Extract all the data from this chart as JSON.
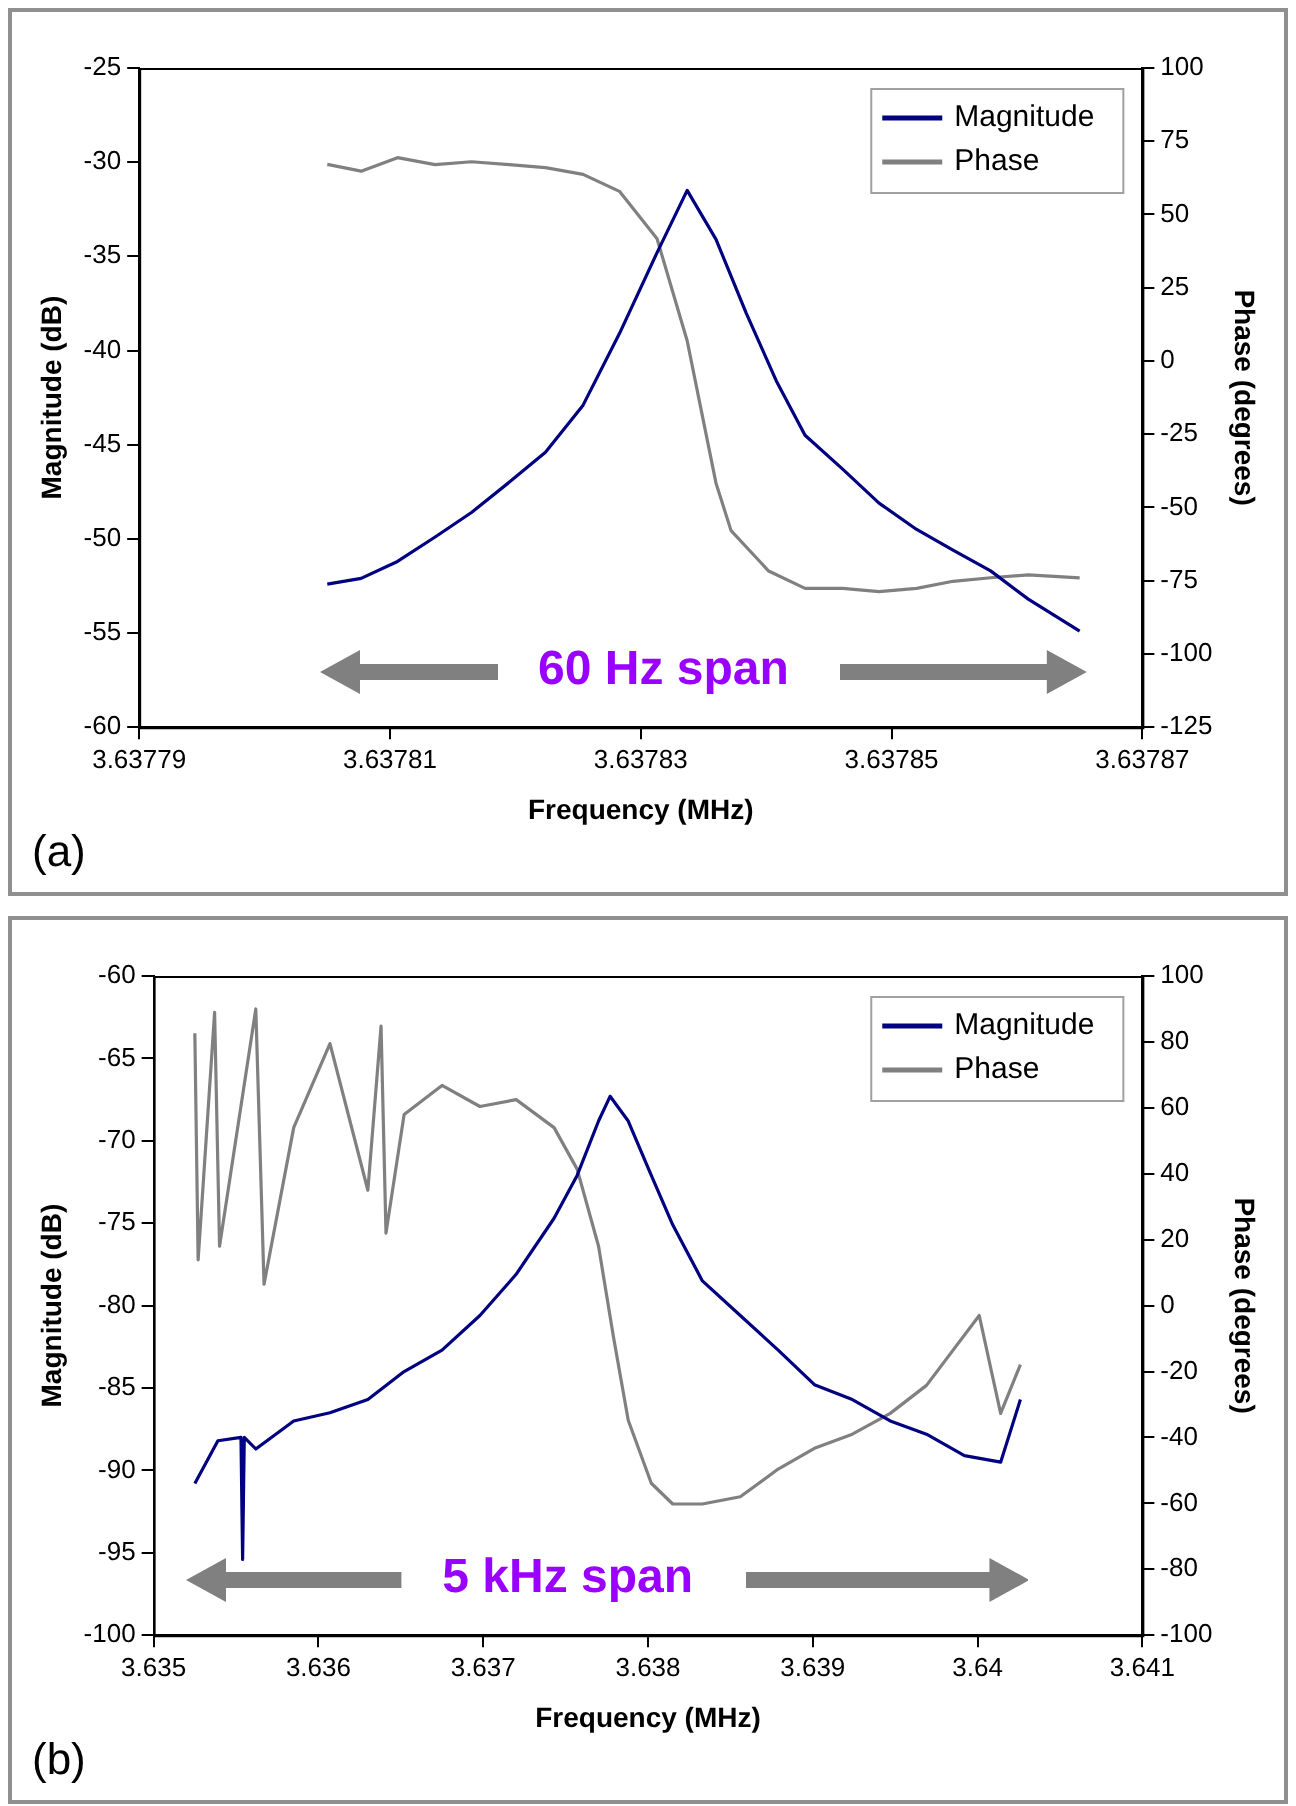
{
  "chart_data": [
    {
      "type": "line",
      "xlabel": "Frequency (MHz)",
      "ylabel": "Magnitude (dB)",
      "y2label": "Phase (degrees)",
      "legend": "top right",
      "grid": false,
      "xlim": [
        3.63779,
        3.63787
      ],
      "xticks": [
        3.63779,
        3.63781,
        3.63783,
        3.63785,
        3.63787
      ],
      "ylim": [
        -60,
        -25
      ],
      "yticks": [
        -60,
        -55,
        -50,
        -45,
        -40,
        -35,
        -30,
        -25
      ],
      "y2lim": [
        -125,
        100
      ],
      "y2ticks": [
        -125,
        -100,
        -75,
        -50,
        -25,
        0,
        25,
        50,
        75,
        100
      ],
      "annotations": [
        "60 Hz span",
        "(a)"
      ],
      "series": [
        {
          "name": "Magnitude",
          "color": "#000080",
          "x": [
            3.637805,
            3.6378077,
            3.6378106,
            3.6378136,
            3.6378165,
            3.6378195,
            3.6378224,
            3.6378254,
            3.6378283,
            3.6378313,
            3.6378337,
            3.637836,
            3.6378384,
            3.6378408,
            3.6378431,
            3.6378461,
            3.637849,
            3.637852,
            3.6378549,
            3.6378579,
            3.6378609,
            3.637865
          ],
          "values": [
            -52.4,
            -52.1,
            -51.2,
            -49.9,
            -48.6,
            -47.0,
            -45.4,
            -42.9,
            -39.1,
            -34.8,
            -31.5,
            -34.1,
            -38.0,
            -41.6,
            -44.5,
            -46.3,
            -48.1,
            -49.5,
            -50.6,
            -51.7,
            -53.2,
            -54.9
          ]
        },
        {
          "name": "Phase",
          "color": "#808080",
          "axis": "y2",
          "x": [
            3.637805,
            3.6378077,
            3.6378106,
            3.6378136,
            3.6378165,
            3.6378195,
            3.6378224,
            3.6378254,
            3.6378283,
            3.6378313,
            3.6378337,
            3.6378349,
            3.637836,
            3.6378372,
            3.6378402,
            3.6378431,
            3.6378461,
            3.637849,
            3.637852,
            3.6378549,
            3.6378579,
            3.6378609,
            3.637865
          ],
          "values": [
            67.1,
            64.8,
            69.4,
            67,
            68,
            67,
            66,
            63.7,
            57.9,
            41.7,
            6.9,
            -18.5,
            -41.7,
            -57.9,
            -71.7,
            -77.6,
            -77.6,
            -78.7,
            -77.6,
            -75.2,
            -74,
            -73,
            -74
          ]
        }
      ]
    },
    {
      "type": "line",
      "xlabel": "Frequency (MHz)",
      "ylabel": "Magnitude (dB)",
      "y2label": "Phase (degrees)",
      "legend": "top right",
      "grid": false,
      "xlim": [
        3.635,
        3.641
      ],
      "xticks": [
        3.635,
        3.636,
        3.637,
        3.638,
        3.639,
        3.64,
        3.641
      ],
      "ylim": [
        -100,
        -60
      ],
      "yticks": [
        -100,
        -95,
        -90,
        -85,
        -80,
        -75,
        -70,
        -65,
        -60
      ],
      "y2lim": [
        -100,
        100
      ],
      "y2ticks": [
        -100,
        -80,
        -60,
        -40,
        -20,
        0,
        20,
        40,
        60,
        80,
        100
      ],
      "annotations": [
        "5 kHz span",
        "(b)"
      ],
      "series": [
        {
          "name": "Magnitude",
          "color": "#000080",
          "x": [
            3.63525,
            3.63539,
            3.63553,
            3.63554,
            3.63555,
            3.63562,
            3.63585,
            3.63607,
            3.6363,
            3.63652,
            3.63675,
            3.63698,
            3.6372,
            3.63743,
            3.63757,
            3.6377,
            3.63777,
            3.63788,
            3.63802,
            3.63815,
            3.63833,
            3.63856,
            3.63879,
            3.63901,
            3.63924,
            3.63947,
            3.63969,
            3.63992,
            3.64014,
            3.64026
          ],
          "values": [
            -90.8,
            -88.2,
            -88,
            -95.4,
            -88,
            -88.7,
            -87.0,
            -86.5,
            -85.7,
            -84.0,
            -82.7,
            -80.6,
            -78.1,
            -74.7,
            -72.1,
            -68.8,
            -67.3,
            -68.8,
            -72.1,
            -75.1,
            -78.5,
            -80.6,
            -82.7,
            -84.8,
            -85.7,
            -87.0,
            -87.8,
            -89.1,
            -89.5,
            -85.7
          ]
        },
        {
          "name": "Phase",
          "color": "#808080",
          "axis": "y2",
          "x": [
            3.63525,
            3.63527,
            3.63537,
            3.6354,
            3.63562,
            3.63567,
            3.63585,
            3.63607,
            3.6363,
            3.63638,
            3.63641,
            3.63652,
            3.63675,
            3.63698,
            3.6372,
            3.63743,
            3.63757,
            3.6377,
            3.63779,
            3.63788,
            3.63802,
            3.63815,
            3.63833,
            3.63856,
            3.63879,
            3.63901,
            3.63924,
            3.63947,
            3.63969,
            3.64001,
            3.64014,
            3.64026
          ],
          "values": [
            82.6,
            13.9,
            89,
            18,
            90,
            6.5,
            54,
            79.5,
            35,
            84.8,
            22,
            58,
            66.8,
            60.4,
            62.5,
            54,
            41.4,
            18,
            -9.4,
            -34.8,
            -53.9,
            -60.2,
            -60.2,
            -58,
            -49.6,
            -43.3,
            -39,
            -32.7,
            -24.2,
            -3,
            -32.7,
            -17.9
          ]
        }
      ]
    }
  ]
}
